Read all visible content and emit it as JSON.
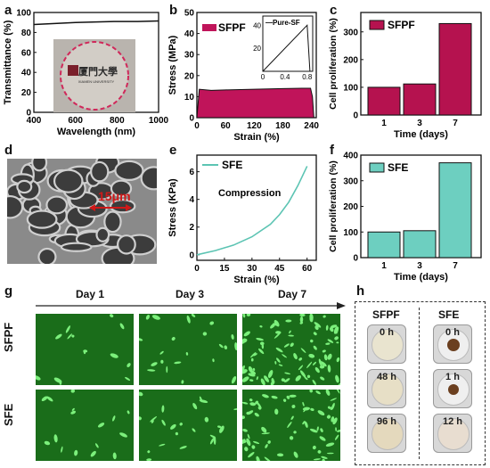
{
  "panels": {
    "a": "a",
    "b": "b",
    "c": "c",
    "d": "d",
    "e": "e",
    "f": "f",
    "g": "g",
    "h": "h"
  },
  "chart_data": [
    {
      "id": "a",
      "type": "line",
      "xlabel": "Wavelength (nm)",
      "ylabel": "Transmittance (%)",
      "xlim": [
        400,
        1000
      ],
      "ylim": [
        0,
        100
      ],
      "xticks": [
        400,
        600,
        800,
        1000
      ],
      "yticks": [
        0,
        20,
        40,
        60,
        80,
        100
      ],
      "series": [
        {
          "x": [
            400,
            500,
            600,
            700,
            800,
            900,
            1000
          ],
          "y": [
            88,
            89,
            90,
            90.5,
            91,
            91,
            91.5
          ]
        }
      ],
      "photo_text": [
        "厦門大學",
        "XIAMEN UNIVERSITY"
      ]
    },
    {
      "id": "b",
      "type": "area",
      "xlabel": "Strain (%)",
      "ylabel": "Stress (MPa)",
      "xlim": [
        0,
        250
      ],
      "ylim": [
        0,
        50
      ],
      "xticks": [
        0,
        60,
        120,
        180,
        240
      ],
      "yticks": [
        0,
        10,
        20,
        30,
        40,
        50
      ],
      "legend": "SFPF",
      "series": [
        {
          "name": "SFPF",
          "x": [
            0,
            5,
            30,
            60,
            120,
            180,
            220,
            238,
            242,
            245
          ],
          "y": [
            0,
            13.5,
            13,
            13.2,
            13.5,
            13.8,
            14,
            14,
            10,
            0
          ]
        }
      ],
      "inset": {
        "legend": "Pure-SF",
        "xticks": [
          "0",
          "0.4",
          "0.8"
        ],
        "yticks": [
          "20",
          "40"
        ],
        "x": [
          0,
          0.8,
          0.85
        ],
        "y": [
          0,
          40,
          0
        ]
      }
    },
    {
      "id": "c",
      "type": "bar",
      "xlabel": "Time (days)",
      "ylabel": "Cell proliferation (%)",
      "ylim": [
        0,
        370
      ],
      "yticks": [
        0,
        100,
        200,
        300
      ],
      "legend": "SFPF",
      "categories": [
        "1",
        "3",
        "7"
      ],
      "values": [
        100,
        112,
        330
      ],
      "color": "#b5124f"
    },
    {
      "id": "e",
      "type": "line",
      "xlabel": "Strain (%)",
      "ylabel": "Stress (KPa)",
      "xlim": [
        0,
        65
      ],
      "ylim": [
        -0.4,
        7.2
      ],
      "xticks": [
        0,
        15,
        30,
        45,
        60
      ],
      "yticks": [
        0,
        2,
        4,
        6
      ],
      "legend": "SFE",
      "annotation": "Compression",
      "series": [
        {
          "name": "SFE",
          "x": [
            0,
            10,
            20,
            30,
            40,
            45,
            50,
            55,
            60
          ],
          "y": [
            0,
            0.3,
            0.7,
            1.3,
            2.2,
            2.9,
            3.8,
            5.0,
            6.4
          ]
        }
      ]
    },
    {
      "id": "f",
      "type": "bar",
      "xlabel": "Time (days)",
      "ylabel": "Cell proliferation (%)",
      "ylim": [
        0,
        400
      ],
      "yticks": [
        0,
        100,
        200,
        300,
        400
      ],
      "legend": "SFE",
      "categories": [
        "1",
        "3",
        "7"
      ],
      "values": [
        100,
        105,
        370
      ],
      "color": "#6dcfc0"
    }
  ],
  "panel_d": {
    "scale": "15μm"
  },
  "panel_g": {
    "days": [
      "Day 1",
      "Day 3",
      "Day 7"
    ],
    "rows": [
      "SFPF",
      "SFE"
    ]
  },
  "panel_h": {
    "cols": [
      "SFPF",
      "SFE"
    ],
    "sfpf_times": [
      "0 h",
      "48 h",
      "96 h"
    ],
    "sfe_times": [
      "0 h",
      "1 h",
      "12 h"
    ]
  }
}
